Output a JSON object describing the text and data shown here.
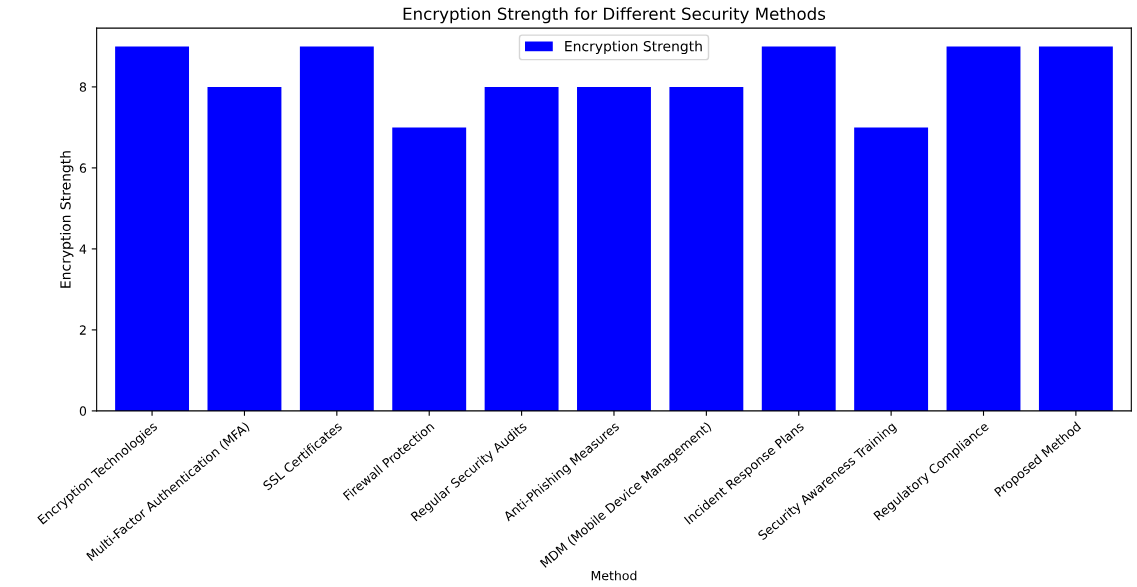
{
  "chart_data": {
    "type": "bar",
    "title": "Encryption Strength for Different Security Methods",
    "xlabel": "Method",
    "ylabel": "Encryption Strength",
    "categories": [
      "Encryption Technologies",
      "Multi-Factor Authentication (MFA)",
      "SSL Certificates",
      "Firewall Protection",
      "Regular Security Audits",
      "Anti-Phishing Measures",
      "MDM (Mobile Device Management)",
      "Incident Response Plans",
      "Security Awareness Training",
      "Regulatory Compliance",
      "Proposed Method"
    ],
    "series": [
      {
        "name": "Encryption Strength",
        "color": "#0000ff",
        "values": [
          9,
          8,
          9,
          7,
          8,
          8,
          8,
          9,
          7,
          9,
          9
        ]
      }
    ],
    "ylim": [
      0,
      9.45
    ],
    "yticks": [
      0,
      2,
      4,
      6,
      8
    ],
    "grid": false,
    "legend": "top"
  }
}
